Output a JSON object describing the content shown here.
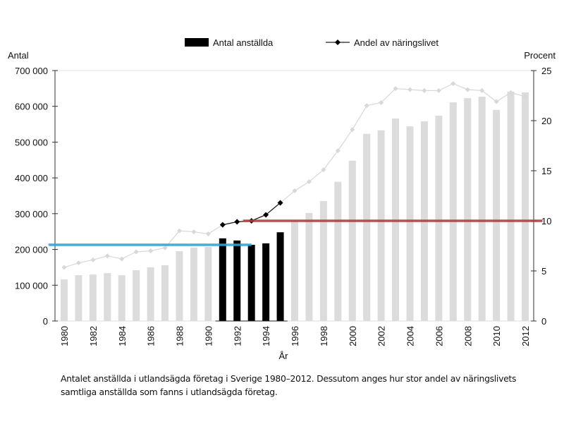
{
  "chart_data": {
    "type": "bar+line",
    "legend": {
      "placement": "top-center",
      "bar_label": "Antal anställda",
      "line_label": "Andel av näringslivet"
    },
    "left_axis": {
      "title": "Antal",
      "range": [
        0,
        700000
      ],
      "ticks": [
        0,
        100000,
        200000,
        300000,
        400000,
        500000,
        600000,
        700000
      ],
      "tick_labels": [
        "0",
        "100 000",
        "200 000",
        "300 000",
        "400 000",
        "500 000",
        "600 000",
        "700 000"
      ]
    },
    "right_axis": {
      "title": "Procent",
      "range": [
        0,
        25
      ],
      "ticks": [
        0,
        5,
        10,
        15,
        20,
        25
      ],
      "tick_labels": [
        "0",
        "5",
        "10",
        "15",
        "20",
        "25"
      ]
    },
    "xlabel": "År",
    "years": [
      1980,
      1981,
      1982,
      1983,
      1984,
      1985,
      1986,
      1987,
      1988,
      1989,
      1990,
      1991,
      1992,
      1993,
      1994,
      1995,
      1996,
      1997,
      1998,
      1999,
      2000,
      2001,
      2002,
      2003,
      2004,
      2005,
      2006,
      2007,
      2008,
      2009,
      2010,
      2011,
      2012
    ],
    "year_labels": [
      "1980",
      "1982",
      "1984",
      "1986",
      "1988",
      "1990",
      "1992",
      "1994",
      "1996",
      "1998",
      "2000",
      "2002",
      "2004",
      "2006",
      "2008",
      "2010",
      "2012"
    ],
    "series": [
      {
        "name": "Antal anställda",
        "type": "bar",
        "axis": "left",
        "values": [
          116000,
          128000,
          130000,
          134000,
          128000,
          142000,
          150000,
          156000,
          195000,
          205000,
          207000,
          231000,
          225000,
          213000,
          217000,
          248000,
          280000,
          302000,
          335000,
          389000,
          448000,
          523000,
          533000,
          566000,
          544000,
          558000,
          574000,
          611000,
          623000,
          627000,
          590000,
          641000,
          639000
        ]
      },
      {
        "name": "Andel av näringslivet",
        "type": "line",
        "axis": "right",
        "values": [
          5.35,
          5.8,
          6.1,
          6.5,
          6.2,
          6.9,
          7.0,
          7.3,
          9.0,
          8.9,
          8.7,
          9.6,
          9.9,
          10.0,
          10.6,
          11.8,
          13.0,
          13.9,
          15.1,
          17.0,
          19.1,
          21.5,
          21.8,
          23.2,
          23.1,
          23.0,
          23.0,
          23.7,
          23.1,
          23.0,
          21.9,
          22.8,
          22.4
        ]
      }
    ],
    "highlight_years": [
      1991,
      1995
    ],
    "annotations": [
      {
        "name": "blue-reference-line",
        "axis": "left",
        "value": 213000,
        "from_year": 1979.5,
        "to_year": 1993,
        "color": "#2aa6dc"
      },
      {
        "name": "red-reference-line",
        "axis": "right",
        "value": 10,
        "from_year": 1993,
        "to_year": 2013.2,
        "color": "#b83a3f"
      }
    ],
    "colors": {
      "highlight": "#000000",
      "muted_bar": "#dcdcdc",
      "muted_line": "#d8d8d8",
      "muted_text": "#d0d0d0"
    }
  },
  "caption": "Antalet anställda i utlandsägda företag i Sverige 1980–2012. Dessutom anges hur stor andel av näringslivets samtliga anställda som fanns i utlandsägda företag."
}
